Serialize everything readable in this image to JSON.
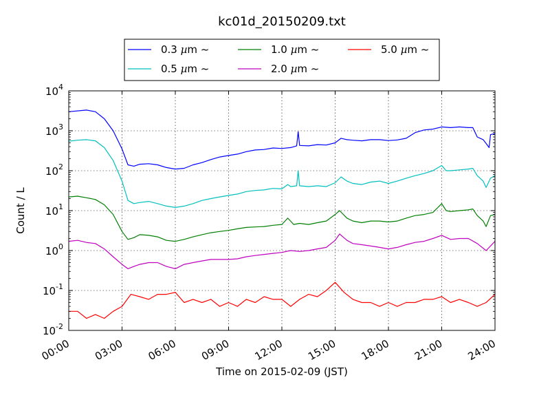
{
  "chart_data": {
    "type": "line",
    "title": "kc01d_20150209.txt",
    "xlabel": "Time on 2015-02-09 (JST)",
    "ylabel": "Count / L",
    "yscale": "log",
    "ylim": [
      0.01,
      10000
    ],
    "xlim": [
      "2015-02-09 00:00",
      "2015-02-10 00:00"
    ],
    "grid": true,
    "legend_position": "top-center",
    "x_ticks": [
      "00:00",
      "03:00",
      "06:00",
      "09:00",
      "12:00",
      "15:00",
      "18:00",
      "21:00",
      "24:00"
    ],
    "y_ticks": [
      {
        "base": "10",
        "exp": "-2"
      },
      {
        "base": "10",
        "exp": "-1"
      },
      {
        "base": "10",
        "exp": "0"
      },
      {
        "base": "10",
        "exp": "1"
      },
      {
        "base": "10",
        "exp": "2"
      },
      {
        "base": "10",
        "exp": "3"
      },
      {
        "base": "10",
        "exp": "4"
      }
    ],
    "series": [
      {
        "name": "0.3 µm ~",
        "label_size": "0.3",
        "color": "#0000ff",
        "points": [
          [
            "00:00",
            3000
          ],
          [
            "01:00",
            3300
          ],
          [
            "01:30",
            3000
          ],
          [
            "02:00",
            2000
          ],
          [
            "02:30",
            1000
          ],
          [
            "03:00",
            350
          ],
          [
            "03:20",
            140
          ],
          [
            "03:40",
            130
          ],
          [
            "04:00",
            145
          ],
          [
            "04:30",
            150
          ],
          [
            "05:00",
            140
          ],
          [
            "05:30",
            120
          ],
          [
            "06:00",
            110
          ],
          [
            "06:30",
            115
          ],
          [
            "07:00",
            140
          ],
          [
            "07:30",
            160
          ],
          [
            "08:00",
            190
          ],
          [
            "08:30",
            220
          ],
          [
            "09:00",
            240
          ],
          [
            "09:30",
            260
          ],
          [
            "10:00",
            300
          ],
          [
            "10:30",
            330
          ],
          [
            "11:00",
            340
          ],
          [
            "11:30",
            370
          ],
          [
            "12:00",
            360
          ],
          [
            "12:30",
            380
          ],
          [
            "12:50",
            420
          ],
          [
            "12:55",
            950
          ],
          [
            "13:00",
            430
          ],
          [
            "13:30",
            420
          ],
          [
            "14:00",
            450
          ],
          [
            "14:30",
            440
          ],
          [
            "15:00",
            500
          ],
          [
            "15:20",
            650
          ],
          [
            "15:40",
            600
          ],
          [
            "16:00",
            580
          ],
          [
            "16:30",
            560
          ],
          [
            "17:00",
            600
          ],
          [
            "17:30",
            600
          ],
          [
            "18:00",
            570
          ],
          [
            "18:30",
            590
          ],
          [
            "19:00",
            650
          ],
          [
            "19:30",
            900
          ],
          [
            "20:00",
            1050
          ],
          [
            "20:30",
            1100
          ],
          [
            "21:00",
            1250
          ],
          [
            "21:30",
            1200
          ],
          [
            "22:00",
            1250
          ],
          [
            "22:30",
            1200
          ],
          [
            "22:45",
            1200
          ],
          [
            "23:00",
            700
          ],
          [
            "23:20",
            600
          ],
          [
            "23:30",
            480
          ],
          [
            "23:40",
            380
          ],
          [
            "23:45",
            800
          ],
          [
            "24:00",
            850
          ]
        ]
      },
      {
        "name": "0.5 µm ~",
        "label_size": "0.5",
        "color": "#00bfbf",
        "points": [
          [
            "00:00",
            550
          ],
          [
            "00:30",
            580
          ],
          [
            "01:00",
            600
          ],
          [
            "01:30",
            560
          ],
          [
            "02:00",
            380
          ],
          [
            "02:30",
            180
          ],
          [
            "03:00",
            55
          ],
          [
            "03:20",
            18
          ],
          [
            "03:40",
            15
          ],
          [
            "04:00",
            16
          ],
          [
            "04:30",
            17
          ],
          [
            "05:00",
            15
          ],
          [
            "05:30",
            13
          ],
          [
            "06:00",
            12
          ],
          [
            "06:30",
            13
          ],
          [
            "07:00",
            15
          ],
          [
            "07:30",
            18
          ],
          [
            "08:00",
            20
          ],
          [
            "08:30",
            22
          ],
          [
            "09:00",
            24
          ],
          [
            "09:30",
            26
          ],
          [
            "10:00",
            30
          ],
          [
            "10:30",
            32
          ],
          [
            "11:00",
            33
          ],
          [
            "11:30",
            36
          ],
          [
            "12:00",
            35
          ],
          [
            "12:20",
            45
          ],
          [
            "12:30",
            40
          ],
          [
            "12:50",
            42
          ],
          [
            "12:55",
            100
          ],
          [
            "13:00",
            42
          ],
          [
            "13:30",
            40
          ],
          [
            "14:00",
            42
          ],
          [
            "14:30",
            40
          ],
          [
            "15:00",
            50
          ],
          [
            "15:20",
            70
          ],
          [
            "15:40",
            55
          ],
          [
            "16:00",
            48
          ],
          [
            "16:30",
            45
          ],
          [
            "17:00",
            52
          ],
          [
            "17:30",
            55
          ],
          [
            "18:00",
            48
          ],
          [
            "18:30",
            55
          ],
          [
            "19:00",
            65
          ],
          [
            "19:30",
            75
          ],
          [
            "20:00",
            85
          ],
          [
            "20:30",
            100
          ],
          [
            "21:00",
            135
          ],
          [
            "21:15",
            100
          ],
          [
            "21:30",
            100
          ],
          [
            "22:00",
            105
          ],
          [
            "22:30",
            110
          ],
          [
            "22:45",
            115
          ],
          [
            "23:00",
            75
          ],
          [
            "23:20",
            55
          ],
          [
            "23:30",
            38
          ],
          [
            "23:45",
            65
          ],
          [
            "24:00",
            75
          ]
        ]
      },
      {
        "name": "1.0 µm ~",
        "label_size": "1.0",
        "color": "#007f00",
        "points": [
          [
            "00:00",
            22
          ],
          [
            "00:30",
            23
          ],
          [
            "01:00",
            21
          ],
          [
            "01:30",
            19
          ],
          [
            "02:00",
            14
          ],
          [
            "02:30",
            8
          ],
          [
            "03:00",
            3
          ],
          [
            "03:20",
            1.9
          ],
          [
            "03:40",
            2.1
          ],
          [
            "04:00",
            2.5
          ],
          [
            "04:30",
            2.4
          ],
          [
            "05:00",
            2.2
          ],
          [
            "05:30",
            1.8
          ],
          [
            "06:00",
            1.7
          ],
          [
            "06:30",
            1.9
          ],
          [
            "07:00",
            2.2
          ],
          [
            "07:30",
            2.5
          ],
          [
            "08:00",
            2.8
          ],
          [
            "08:30",
            3.0
          ],
          [
            "09:00",
            3.2
          ],
          [
            "09:30",
            3.5
          ],
          [
            "10:00",
            3.8
          ],
          [
            "10:30",
            3.9
          ],
          [
            "11:00",
            4.0
          ],
          [
            "11:30",
            4.3
          ],
          [
            "12:00",
            4.5
          ],
          [
            "12:20",
            6.5
          ],
          [
            "12:40",
            4.5
          ],
          [
            "13:00",
            4.8
          ],
          [
            "13:30",
            4.5
          ],
          [
            "14:00",
            5.0
          ],
          [
            "14:30",
            5.5
          ],
          [
            "15:00",
            8
          ],
          [
            "15:15",
            10
          ],
          [
            "15:40",
            6.5
          ],
          [
            "16:00",
            5.5
          ],
          [
            "16:30",
            5.0
          ],
          [
            "17:00",
            5.5
          ],
          [
            "17:30",
            5.5
          ],
          [
            "18:00",
            5.2
          ],
          [
            "18:30",
            5.5
          ],
          [
            "19:00",
            6.5
          ],
          [
            "19:30",
            7.5
          ],
          [
            "20:00",
            8
          ],
          [
            "20:30",
            9
          ],
          [
            "21:00",
            15
          ],
          [
            "21:15",
            10
          ],
          [
            "21:30",
            9.5
          ],
          [
            "22:00",
            10
          ],
          [
            "22:30",
            10.5
          ],
          [
            "22:45",
            11
          ],
          [
            "23:00",
            7.5
          ],
          [
            "23:20",
            5.5
          ],
          [
            "23:30",
            4
          ],
          [
            "23:45",
            7.5
          ],
          [
            "24:00",
            8
          ]
        ]
      },
      {
        "name": "2.0 µm ~",
        "label_size": "2.0",
        "color": "#bf00bf",
        "points": [
          [
            "00:00",
            1.7
          ],
          [
            "00:30",
            1.8
          ],
          [
            "01:00",
            1.6
          ],
          [
            "01:30",
            1.5
          ],
          [
            "02:00",
            1.1
          ],
          [
            "02:30",
            0.7
          ],
          [
            "03:00",
            0.45
          ],
          [
            "03:20",
            0.35
          ],
          [
            "03:40",
            0.4
          ],
          [
            "04:00",
            0.45
          ],
          [
            "04:30",
            0.5
          ],
          [
            "05:00",
            0.5
          ],
          [
            "05:30",
            0.4
          ],
          [
            "06:00",
            0.35
          ],
          [
            "06:30",
            0.45
          ],
          [
            "07:00",
            0.5
          ],
          [
            "07:30",
            0.55
          ],
          [
            "08:00",
            0.6
          ],
          [
            "08:30",
            0.6
          ],
          [
            "09:00",
            0.6
          ],
          [
            "09:30",
            0.62
          ],
          [
            "10:00",
            0.7
          ],
          [
            "10:30",
            0.75
          ],
          [
            "11:00",
            0.8
          ],
          [
            "11:30",
            0.85
          ],
          [
            "12:00",
            0.9
          ],
          [
            "12:30",
            1.0
          ],
          [
            "13:00",
            0.95
          ],
          [
            "13:30",
            1.0
          ],
          [
            "14:00",
            1.1
          ],
          [
            "14:30",
            1.2
          ],
          [
            "15:00",
            1.8
          ],
          [
            "15:15",
            2.6
          ],
          [
            "15:40",
            1.8
          ],
          [
            "16:00",
            1.5
          ],
          [
            "16:30",
            1.4
          ],
          [
            "17:00",
            1.3
          ],
          [
            "17:30",
            1.2
          ],
          [
            "18:00",
            1.1
          ],
          [
            "18:30",
            1.2
          ],
          [
            "19:00",
            1.4
          ],
          [
            "19:30",
            1.6
          ],
          [
            "20:00",
            1.7
          ],
          [
            "20:30",
            2.0
          ],
          [
            "21:00",
            2.4
          ],
          [
            "21:30",
            1.9
          ],
          [
            "22:00",
            2.0
          ],
          [
            "22:30",
            2.0
          ],
          [
            "23:00",
            1.5
          ],
          [
            "23:30",
            1.0
          ],
          [
            "24:00",
            1.7
          ]
        ]
      },
      {
        "name": "5.0 µm ~",
        "label_size": "5.0",
        "color": "#ff0000",
        "points": [
          [
            "00:00",
            0.03
          ],
          [
            "00:30",
            0.03
          ],
          [
            "01:00",
            0.02
          ],
          [
            "01:30",
            0.025
          ],
          [
            "02:00",
            0.02
          ],
          [
            "02:30",
            0.03
          ],
          [
            "03:00",
            0.04
          ],
          [
            "03:30",
            0.08
          ],
          [
            "04:00",
            0.07
          ],
          [
            "04:30",
            0.06
          ],
          [
            "05:00",
            0.08
          ],
          [
            "05:30",
            0.08
          ],
          [
            "06:00",
            0.09
          ],
          [
            "06:30",
            0.05
          ],
          [
            "07:00",
            0.06
          ],
          [
            "07:30",
            0.05
          ],
          [
            "08:00",
            0.06
          ],
          [
            "08:30",
            0.04
          ],
          [
            "09:00",
            0.05
          ],
          [
            "09:30",
            0.04
          ],
          [
            "10:00",
            0.06
          ],
          [
            "10:30",
            0.05
          ],
          [
            "11:00",
            0.07
          ],
          [
            "11:30",
            0.06
          ],
          [
            "12:00",
            0.06
          ],
          [
            "12:30",
            0.04
          ],
          [
            "13:00",
            0.06
          ],
          [
            "13:30",
            0.08
          ],
          [
            "14:00",
            0.07
          ],
          [
            "14:30",
            0.1
          ],
          [
            "15:00",
            0.16
          ],
          [
            "15:30",
            0.09
          ],
          [
            "16:00",
            0.06
          ],
          [
            "16:30",
            0.05
          ],
          [
            "17:00",
            0.05
          ],
          [
            "17:30",
            0.04
          ],
          [
            "18:00",
            0.05
          ],
          [
            "18:30",
            0.04
          ],
          [
            "19:00",
            0.05
          ],
          [
            "19:30",
            0.05
          ],
          [
            "20:00",
            0.06
          ],
          [
            "20:30",
            0.06
          ],
          [
            "21:00",
            0.07
          ],
          [
            "21:30",
            0.05
          ],
          [
            "22:00",
            0.06
          ],
          [
            "22:30",
            0.05
          ],
          [
            "23:00",
            0.04
          ],
          [
            "23:30",
            0.05
          ],
          [
            "24:00",
            0.08
          ]
        ]
      }
    ]
  }
}
